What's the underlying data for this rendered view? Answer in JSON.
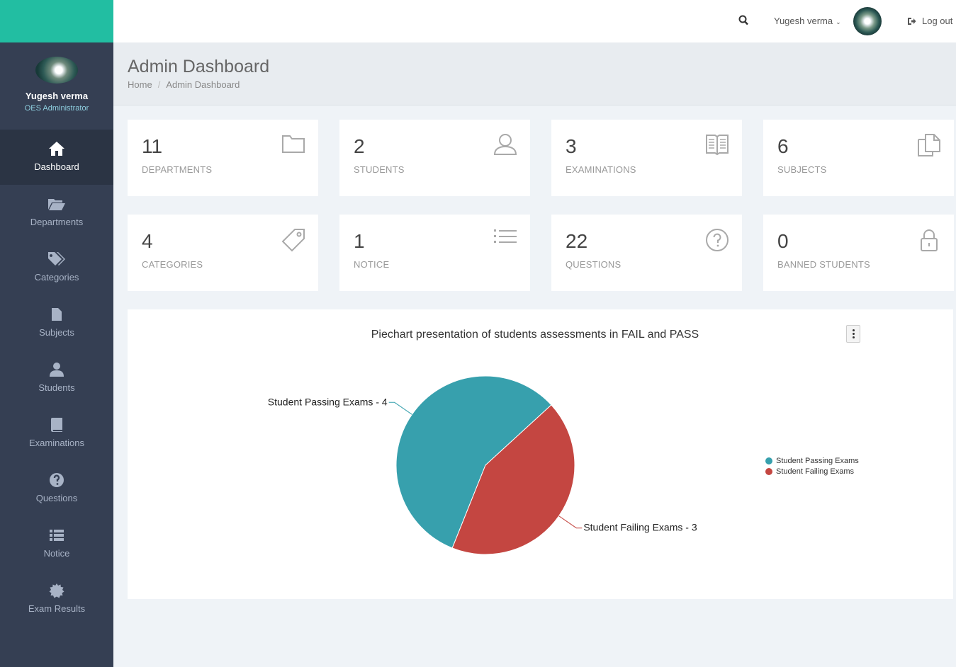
{
  "sidebar": {
    "profile_name": "Yugesh verma",
    "profile_role": "OES Administrator",
    "items": [
      {
        "label": "Dashboard",
        "icon": "home-icon"
      },
      {
        "label": "Departments",
        "icon": "folder-open-icon"
      },
      {
        "label": "Categories",
        "icon": "tags-icon"
      },
      {
        "label": "Subjects",
        "icon": "file-icon"
      },
      {
        "label": "Students",
        "icon": "user-icon"
      },
      {
        "label": "Examinations",
        "icon": "book-icon"
      },
      {
        "label": "Questions",
        "icon": "question-circle-icon"
      },
      {
        "label": "Notice",
        "icon": "list-icon"
      },
      {
        "label": "Exam Results",
        "icon": "badge-icon"
      }
    ]
  },
  "topbar": {
    "user_name": "Yugesh verma",
    "logout_label": "Log out"
  },
  "header": {
    "title": "Admin Dashboard",
    "breadcrumb_home": "Home",
    "breadcrumb_current": "Admin Dashboard"
  },
  "stats": [
    {
      "value": "11",
      "label": "DEPARTMENTS",
      "icon": "folder-icon"
    },
    {
      "value": "2",
      "label": "STUDENTS",
      "icon": "user-outline-icon"
    },
    {
      "value": "3",
      "label": "EXAMINATIONS",
      "icon": "open-book-icon"
    },
    {
      "value": "6",
      "label": "SUBJECTS",
      "icon": "documents-icon"
    },
    {
      "value": "4",
      "label": "CATEGORIES",
      "icon": "tag-icon"
    },
    {
      "value": "1",
      "label": "NOTICE",
      "icon": "list-icon"
    },
    {
      "value": "22",
      "label": "QUESTIONS",
      "icon": "question-circle-icon"
    },
    {
      "value": "0",
      "label": "BANNED STUDENTS",
      "icon": "lock-icon"
    }
  ],
  "chart_data": {
    "type": "pie",
    "title": "Piechart presentation of students assessments in FAIL and PASS",
    "series": [
      {
        "name": "Student Passing Exams",
        "value": 4,
        "color": "#37a0ad",
        "slice_label": "Student Passing Exams - 4"
      },
      {
        "name": "Student Failing Exams",
        "value": 3,
        "color": "#c44641",
        "slice_label": "Student Failing Exams - 3"
      }
    ],
    "legend_position": "right"
  },
  "colors": {
    "brand": "#22bea2",
    "sidebar": "#353f53",
    "pass": "#37a0ad",
    "fail": "#c44641"
  }
}
